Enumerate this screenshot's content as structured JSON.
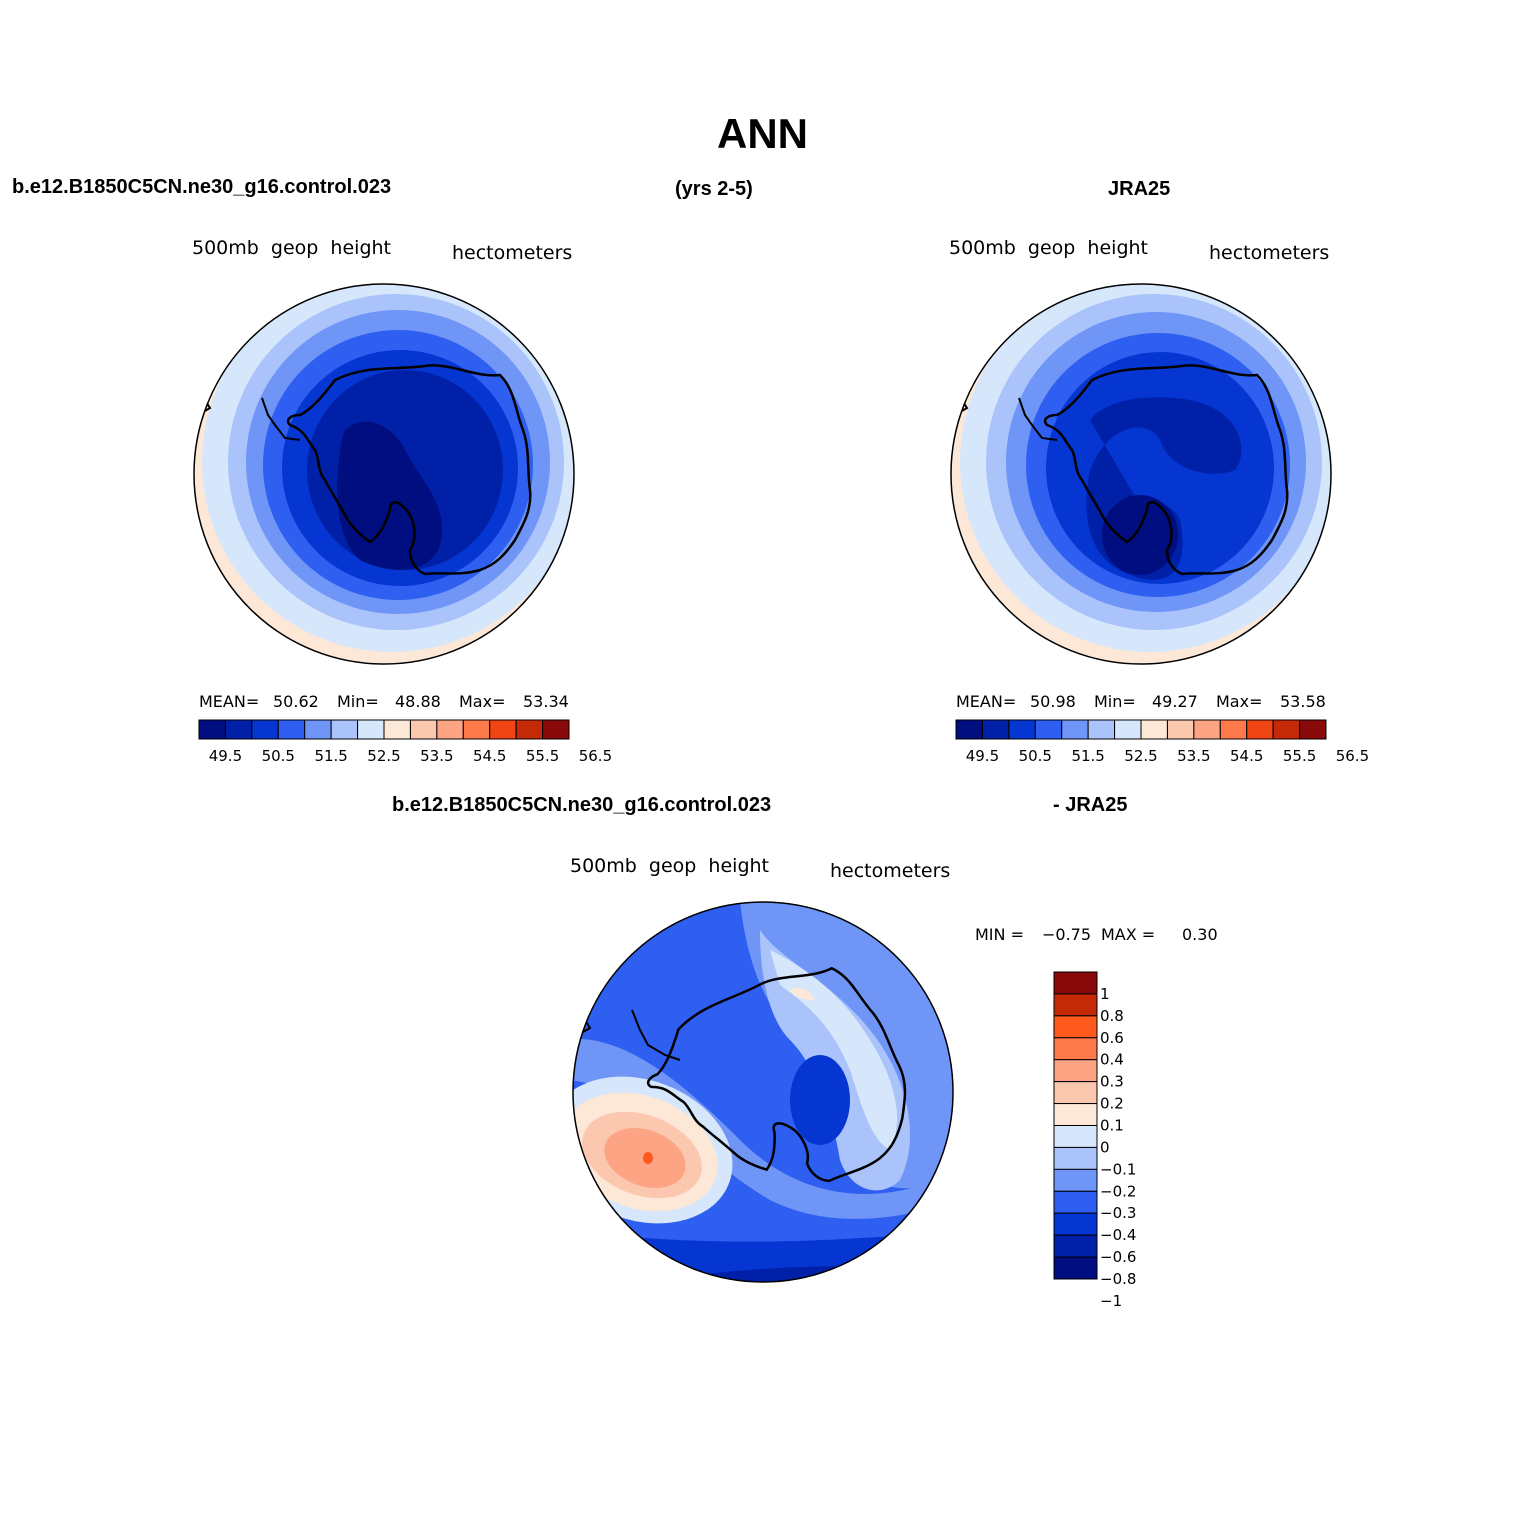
{
  "figure": {
    "title": "ANN",
    "case_name": "b.e12.B1850C5CN.ne30_g16.control.023",
    "years": "(yrs 2-5)",
    "reference": "JRA25",
    "diff_case_name": "b.e12.B1850C5CN.ne30_g16.control.023",
    "diff_suffix": "- JRA25"
  },
  "colors": {
    "scale": [
      "#000e80",
      "#0020a8",
      "#0536d2",
      "#2f5ff0",
      "#6f95f7",
      "#aac4fb",
      "#d6e7fc",
      "#fde8d8",
      "#fcc7af",
      "#fca483",
      "#ff7a4a",
      "#ef4513",
      "#c42a07",
      "#880a0a"
    ],
    "diff_scale": [
      "#000e80",
      "#0020a8",
      "#0536d2",
      "#2f5ff0",
      "#6f95f7",
      "#aac4fb",
      "#d6e7fc",
      "#fde8d8",
      "#fcc7af",
      "#fca483",
      "#ff7a4a",
      "#ff5a1e",
      "#c42a07",
      "#880a0a"
    ],
    "coast": "#000000"
  },
  "panels": [
    {
      "id": "model",
      "variable": "500mb  geop  height",
      "units": "hectometers",
      "mean_label": "MEAN=",
      "mean": "50.62",
      "min_label": "Min=",
      "min": "48.88",
      "max_label": "Max=",
      "max": "53.34",
      "ticks": [
        "49.5",
        "50.5",
        "51.5",
        "52.5",
        "53.5",
        "54.5",
        "55.5",
        "56.5"
      ]
    },
    {
      "id": "obs",
      "variable": "500mb  geop  height",
      "units": "hectometers",
      "mean_label": "MEAN=",
      "mean": "50.98",
      "min_label": "Min=",
      "min": "49.27",
      "max_label": "Max=",
      "max": "53.58",
      "ticks": [
        "49.5",
        "50.5",
        "51.5",
        "52.5",
        "53.5",
        "54.5",
        "55.5",
        "56.5"
      ]
    }
  ],
  "diff_panel": {
    "variable": "500mb  geop  height",
    "units": "hectometers",
    "min_label": "MIN =",
    "min": "−0.75",
    "max_label": "MAX =",
    "max": "0.30",
    "levels": [
      "1",
      "0.8",
      "0.6",
      "0.4",
      "0.3",
      "0.2",
      "0.1",
      "0",
      "−0.1",
      "−0.2",
      "−0.3",
      "−0.4",
      "−0.6",
      "−0.8",
      "−1"
    ]
  }
}
